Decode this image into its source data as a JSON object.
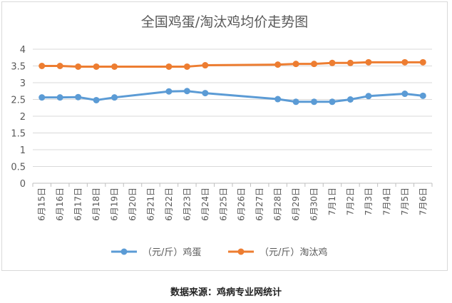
{
  "chart_data": {
    "type": "line",
    "title": "全国鸡蛋/淘汰鸡均价走势图",
    "categories": [
      "6月15日",
      "6月16日",
      "6月17日",
      "6月18日",
      "6月19日",
      "6月20日",
      "6月21日",
      "6月22日",
      "6月23日",
      "6月24日",
      "6月25日",
      "6月26日",
      "6月27日",
      "6月28日",
      "6月29日",
      "6月30日",
      "7月1日",
      "7月2日",
      "7月3日",
      "7月4日",
      "7月5日",
      "7月6日"
    ],
    "y_ticks": [
      "0",
      "0.5",
      "1",
      "1.5",
      "2",
      "2.5",
      "3",
      "3.5",
      "4"
    ],
    "ylim": [
      0,
      4
    ],
    "grid": true,
    "legend_position": "bottom",
    "series": [
      {
        "name": "（元/斤）鸡蛋",
        "color": "#5b9bd5",
        "values": [
          2.56,
          2.56,
          2.57,
          2.48,
          2.56,
          null,
          null,
          2.74,
          2.75,
          2.69,
          null,
          null,
          null,
          2.51,
          2.43,
          2.43,
          2.43,
          2.5,
          2.6,
          null,
          2.67,
          2.61
        ]
      },
      {
        "name": "（元/斤）淘汰鸡",
        "color": "#ed7d31",
        "values": [
          3.5,
          3.5,
          3.48,
          3.48,
          3.48,
          null,
          null,
          3.48,
          3.48,
          3.52,
          null,
          null,
          null,
          3.54,
          3.56,
          3.56,
          3.59,
          3.59,
          3.61,
          null,
          3.61,
          3.61
        ]
      }
    ]
  },
  "source": "数据来源：鸡病专业网统计"
}
